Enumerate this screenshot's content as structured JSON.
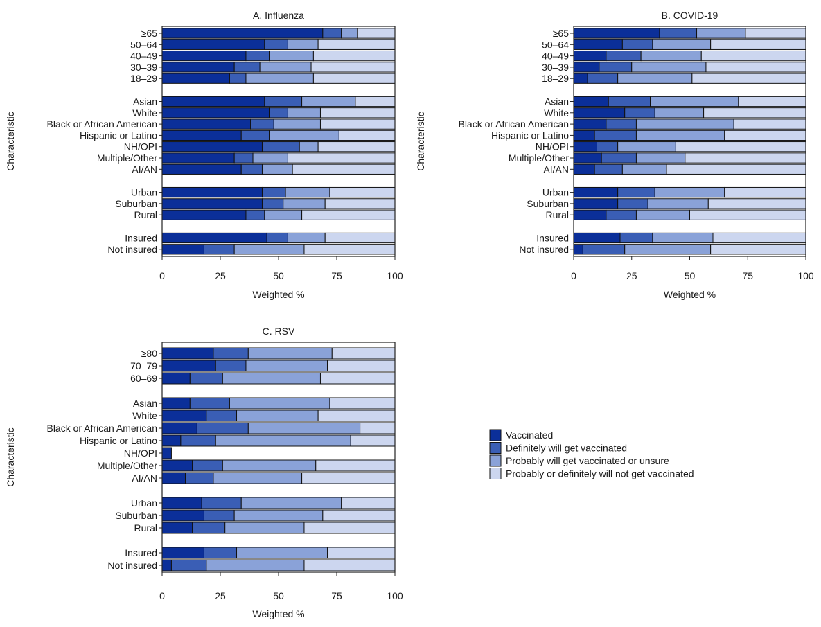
{
  "legend": {
    "items": [
      {
        "label": "Vaccinated",
        "color": "#0b2f99"
      },
      {
        "label": "Definitely will get vaccinated",
        "color": "#3a5eb5"
      },
      {
        "label": "Probably will get vaccinated or unsure",
        "color": "#8aa2d8"
      },
      {
        "label": "Probably or definitely will not get vaccinated",
        "color": "#ccd6ef"
      }
    ]
  },
  "chart_data": [
    {
      "type": "bar",
      "orientation": "horizontal",
      "stacked": true,
      "title": "A. Influenza",
      "xlabel": "Weighted %",
      "ylabel": "Characteristic",
      "xlim": [
        0,
        100
      ],
      "xticks": [
        "0",
        "25",
        "50",
        "75",
        "100"
      ],
      "groups": [
        [
          {
            "label": "≥65",
            "values": [
              69,
              8,
              7,
              16
            ]
          },
          {
            "label": "50–64",
            "values": [
              44,
              10,
              13,
              33
            ]
          },
          {
            "label": "40–49",
            "values": [
              36,
              10,
              19,
              35
            ]
          },
          {
            "label": "30–39",
            "values": [
              31,
              11,
              22,
              36
            ]
          },
          {
            "label": "18–29",
            "values": [
              29,
              7,
              29,
              35
            ]
          }
        ],
        [
          {
            "label": "Asian",
            "values": [
              44,
              16,
              23,
              17
            ]
          },
          {
            "label": "White",
            "values": [
              46,
              8,
              14,
              32
            ]
          },
          {
            "label": "Black or African American",
            "values": [
              38,
              10,
              20,
              32
            ]
          },
          {
            "label": "Hispanic or Latino",
            "values": [
              34,
              12,
              30,
              24
            ]
          },
          {
            "label": "NH/OPI",
            "values": [
              43,
              16,
              8,
              33
            ]
          },
          {
            "label": "Multiple/Other",
            "values": [
              31,
              8,
              15,
              46
            ]
          },
          {
            "label": "AI/AN",
            "values": [
              34,
              9,
              13,
              44
            ]
          }
        ],
        [
          {
            "label": "Urban",
            "values": [
              43,
              10,
              19,
              28
            ]
          },
          {
            "label": "Suburban",
            "values": [
              43,
              9,
              18,
              30
            ]
          },
          {
            "label": "Rural",
            "values": [
              36,
              8,
              16,
              40
            ]
          }
        ],
        [
          {
            "label": "Insured",
            "values": [
              45,
              9,
              16,
              30
            ]
          },
          {
            "label": "Not insured",
            "values": [
              18,
              13,
              30,
              39
            ]
          }
        ]
      ]
    },
    {
      "type": "bar",
      "orientation": "horizontal",
      "stacked": true,
      "title": "B. COVID-19",
      "xlabel": "Weighted %",
      "ylabel": "Characteristic",
      "xlim": [
        0,
        100
      ],
      "xticks": [
        "0",
        "25",
        "50",
        "75",
        "100"
      ],
      "groups": [
        [
          {
            "label": "≥65",
            "values": [
              37,
              16,
              21,
              26
            ]
          },
          {
            "label": "50–64",
            "values": [
              21,
              13,
              25,
              41
            ]
          },
          {
            "label": "40–49",
            "values": [
              14,
              15,
              26,
              45
            ]
          },
          {
            "label": "30–39",
            "values": [
              11,
              14,
              32,
              43
            ]
          },
          {
            "label": "18–29",
            "values": [
              6,
              13,
              32,
              49
            ]
          }
        ],
        [
          {
            "label": "Asian",
            "values": [
              15,
              18,
              38,
              29
            ]
          },
          {
            "label": "White",
            "values": [
              22,
              13,
              21,
              44
            ]
          },
          {
            "label": "Black or African American",
            "values": [
              14,
              13,
              42,
              31
            ]
          },
          {
            "label": "Hispanic or Latino",
            "values": [
              9,
              18,
              38,
              35
            ]
          },
          {
            "label": "NH/OPI",
            "values": [
              10,
              9,
              25,
              56
            ]
          },
          {
            "label": "Multiple/Other",
            "values": [
              12,
              15,
              21,
              52
            ]
          },
          {
            "label": "AI/AN",
            "values": [
              9,
              12,
              19,
              60
            ]
          }
        ],
        [
          {
            "label": "Urban",
            "values": [
              19,
              16,
              30,
              35
            ]
          },
          {
            "label": "Suburban",
            "values": [
              19,
              13,
              26,
              42
            ]
          },
          {
            "label": "Rural",
            "values": [
              14,
              13,
              23,
              50
            ]
          }
        ],
        [
          {
            "label": "Insured",
            "values": [
              20,
              14,
              26,
              40
            ]
          },
          {
            "label": "Not insured",
            "values": [
              4,
              18,
              37,
              41
            ]
          }
        ]
      ]
    },
    {
      "type": "bar",
      "orientation": "horizontal",
      "stacked": true,
      "title": "C. RSV",
      "xlabel": "Weighted %",
      "ylabel": "Characteristic",
      "xlim": [
        0,
        100
      ],
      "xticks": [
        "0",
        "25",
        "50",
        "75",
        "100"
      ],
      "groups": [
        [
          {
            "label": "≥80",
            "values": [
              22,
              15,
              36,
              27
            ]
          },
          {
            "label": "70–79",
            "values": [
              23,
              13,
              35,
              29
            ]
          },
          {
            "label": "60–69",
            "values": [
              12,
              14,
              42,
              32
            ]
          }
        ],
        [
          {
            "label": "Asian",
            "values": [
              12,
              17,
              43,
              28
            ]
          },
          {
            "label": "White",
            "values": [
              19,
              13,
              35,
              33
            ]
          },
          {
            "label": "Black or African American",
            "values": [
              15,
              22,
              48,
              15
            ]
          },
          {
            "label": "Hispanic or Latino",
            "values": [
              8,
              15,
              58,
              19
            ]
          },
          {
            "label": "NH/OPI",
            "values": [
              4,
              0,
              0,
              0
            ]
          },
          {
            "label": "Multiple/Other",
            "values": [
              13,
              13,
              40,
              34
            ]
          },
          {
            "label": "AI/AN",
            "values": [
              10,
              12,
              38,
              40
            ]
          }
        ],
        [
          {
            "label": "Urban",
            "values": [
              17,
              17,
              43,
              23
            ]
          },
          {
            "label": "Suburban",
            "values": [
              18,
              13,
              38,
              31
            ]
          },
          {
            "label": "Rural",
            "values": [
              13,
              14,
              34,
              39
            ]
          }
        ],
        [
          {
            "label": "Insured",
            "values": [
              18,
              14,
              39,
              29
            ]
          },
          {
            "label": "Not insured",
            "values": [
              4,
              15,
              42,
              39
            ]
          }
        ]
      ]
    }
  ]
}
